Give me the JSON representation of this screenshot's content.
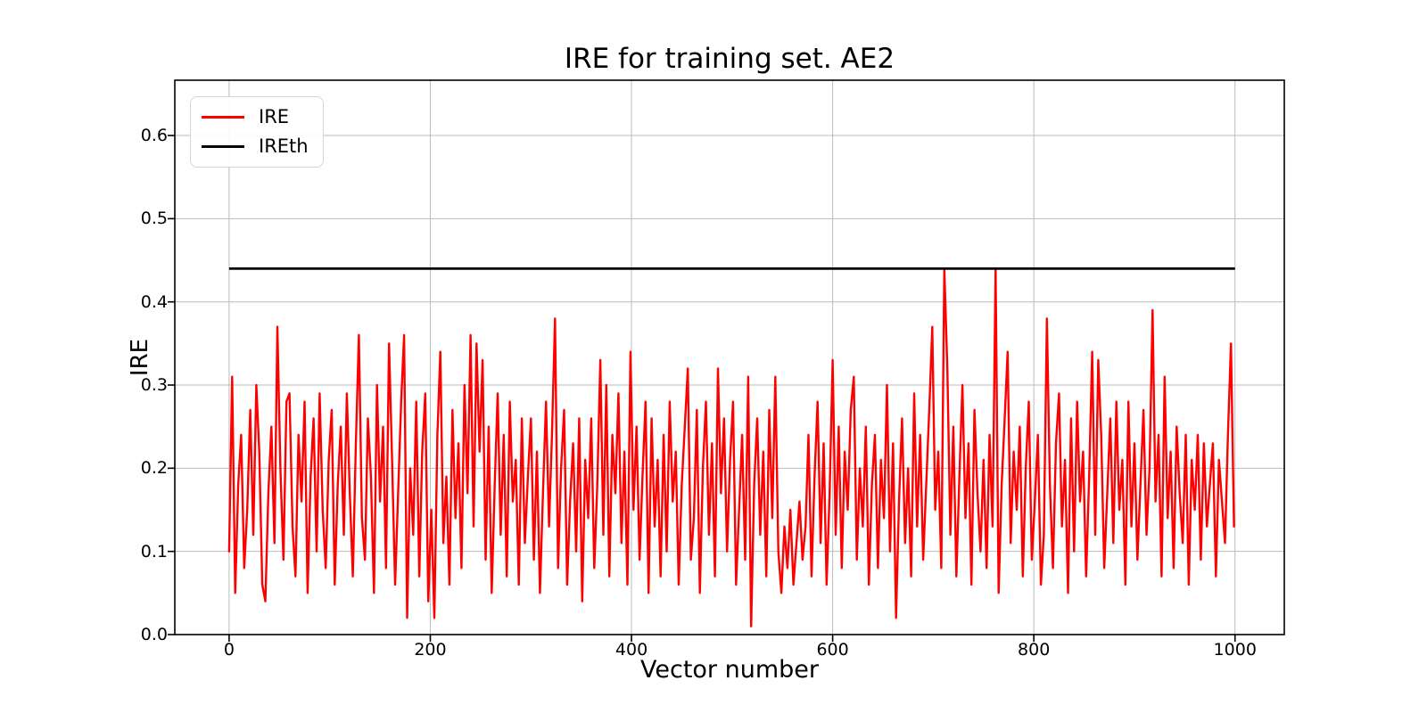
{
  "chart_data": {
    "type": "line",
    "title": "IRE for training set. AE2",
    "xlabel": "Vector number",
    "ylabel": "IRE",
    "xlim": [
      -54,
      1049
    ],
    "ylim": [
      0,
      0.6665
    ],
    "grid": true,
    "grid_color": "#bbbbbb",
    "background": "#ffffff",
    "xticks": [
      0,
      200,
      400,
      600,
      800,
      1000
    ],
    "xtick_labels": [
      "0",
      "200",
      "400",
      "600",
      "800",
      "1000"
    ],
    "yticks": [
      0.0,
      0.1,
      0.2,
      0.3,
      0.4,
      0.5,
      0.6
    ],
    "ytick_labels": [
      "0.0",
      "0.1",
      "0.2",
      "0.3",
      "0.4",
      "0.5",
      "0.6"
    ],
    "legend": {
      "position": "upper-left",
      "entries": [
        {
          "label": "IRE",
          "color": "#ff0000"
        },
        {
          "label": "IREth",
          "color": "#000000"
        }
      ]
    },
    "series": [
      {
        "name": "IRE",
        "color": "#ff0000",
        "line_width": 2.4,
        "x_start": 0,
        "x_step": 3,
        "values": [
          0.1,
          0.31,
          0.05,
          0.18,
          0.24,
          0.08,
          0.15,
          0.27,
          0.12,
          0.3,
          0.22,
          0.06,
          0.04,
          0.17,
          0.25,
          0.11,
          0.37,
          0.2,
          0.09,
          0.28,
          0.29,
          0.13,
          0.07,
          0.24,
          0.16,
          0.28,
          0.05,
          0.19,
          0.26,
          0.1,
          0.29,
          0.15,
          0.08,
          0.21,
          0.27,
          0.06,
          0.18,
          0.25,
          0.12,
          0.29,
          0.17,
          0.07,
          0.23,
          0.36,
          0.14,
          0.09,
          0.26,
          0.19,
          0.05,
          0.3,
          0.16,
          0.25,
          0.08,
          0.35,
          0.21,
          0.06,
          0.17,
          0.28,
          0.36,
          0.02,
          0.2,
          0.12,
          0.28,
          0.07,
          0.22,
          0.29,
          0.04,
          0.15,
          0.02,
          0.24,
          0.34,
          0.11,
          0.19,
          0.06,
          0.27,
          0.14,
          0.23,
          0.08,
          0.3,
          0.17,
          0.36,
          0.13,
          0.35,
          0.22,
          0.33,
          0.09,
          0.25,
          0.05,
          0.18,
          0.29,
          0.12,
          0.24,
          0.07,
          0.28,
          0.16,
          0.21,
          0.06,
          0.26,
          0.11,
          0.19,
          0.26,
          0.09,
          0.22,
          0.05,
          0.17,
          0.28,
          0.13,
          0.24,
          0.38,
          0.08,
          0.2,
          0.27,
          0.06,
          0.16,
          0.23,
          0.1,
          0.26,
          0.04,
          0.21,
          0.14,
          0.26,
          0.08,
          0.18,
          0.33,
          0.12,
          0.3,
          0.07,
          0.24,
          0.17,
          0.29,
          0.11,
          0.22,
          0.06,
          0.34,
          0.15,
          0.25,
          0.09,
          0.19,
          0.28,
          0.05,
          0.26,
          0.13,
          0.21,
          0.07,
          0.24,
          0.1,
          0.28,
          0.16,
          0.22,
          0.06,
          0.18,
          0.25,
          0.32,
          0.09,
          0.14,
          0.27,
          0.05,
          0.2,
          0.28,
          0.12,
          0.23,
          0.07,
          0.32,
          0.17,
          0.26,
          0.1,
          0.21,
          0.28,
          0.06,
          0.15,
          0.24,
          0.09,
          0.31,
          0.01,
          0.18,
          0.26,
          0.12,
          0.22,
          0.07,
          0.27,
          0.14,
          0.31,
          0.1,
          0.05,
          0.13,
          0.08,
          0.15,
          0.06,
          0.11,
          0.16,
          0.09,
          0.13,
          0.24,
          0.07,
          0.19,
          0.28,
          0.11,
          0.23,
          0.06,
          0.17,
          0.33,
          0.12,
          0.25,
          0.08,
          0.22,
          0.15,
          0.27,
          0.31,
          0.09,
          0.2,
          0.13,
          0.25,
          0.06,
          0.18,
          0.24,
          0.08,
          0.21,
          0.14,
          0.3,
          0.1,
          0.23,
          0.02,
          0.16,
          0.26,
          0.11,
          0.2,
          0.07,
          0.29,
          0.13,
          0.24,
          0.09,
          0.18,
          0.27,
          0.37,
          0.15,
          0.22,
          0.08,
          0.44,
          0.32,
          0.12,
          0.25,
          0.07,
          0.19,
          0.3,
          0.14,
          0.23,
          0.06,
          0.27,
          0.17,
          0.1,
          0.21,
          0.08,
          0.24,
          0.13,
          0.44,
          0.05,
          0.18,
          0.26,
          0.34,
          0.11,
          0.22,
          0.15,
          0.25,
          0.07,
          0.2,
          0.28,
          0.09,
          0.16,
          0.24,
          0.06,
          0.12,
          0.38,
          0.18,
          0.08,
          0.23,
          0.29,
          0.13,
          0.21,
          0.05,
          0.26,
          0.1,
          0.28,
          0.16,
          0.22,
          0.07,
          0.19,
          0.34,
          0.12,
          0.33,
          0.24,
          0.08,
          0.17,
          0.26,
          0.11,
          0.28,
          0.15,
          0.21,
          0.06,
          0.28,
          0.13,
          0.23,
          0.09,
          0.18,
          0.27,
          0.12,
          0.2,
          0.39,
          0.16,
          0.24,
          0.07,
          0.31,
          0.14,
          0.22,
          0.08,
          0.25,
          0.17,
          0.11,
          0.24,
          0.06,
          0.21,
          0.15,
          0.24,
          0.09,
          0.23,
          0.13,
          0.18,
          0.23,
          0.07,
          0.21,
          0.16,
          0.11,
          0.24,
          0.35,
          0.13
        ]
      },
      {
        "name": "IREth",
        "type": "hline",
        "color": "#000000",
        "line_width": 2.8,
        "value": 0.44,
        "x_range": [
          0,
          1000
        ]
      }
    ]
  }
}
